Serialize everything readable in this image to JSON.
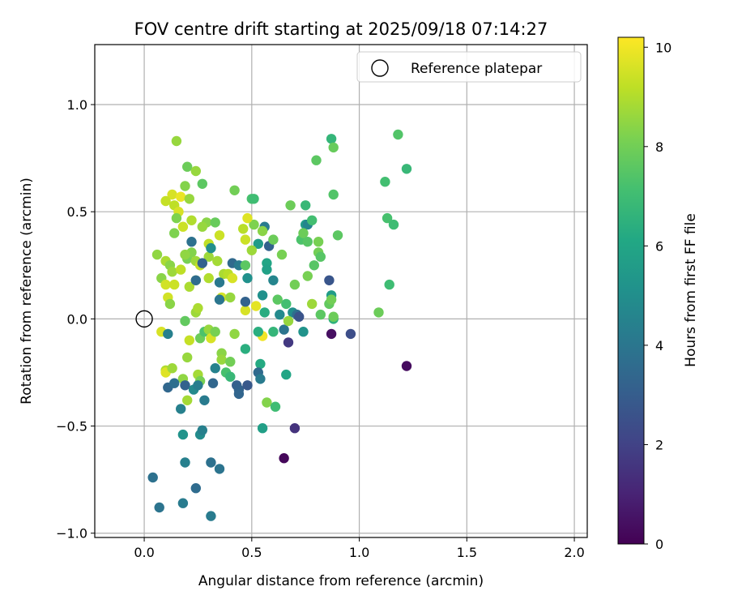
{
  "chart_data": {
    "type": "scatter",
    "title": "FOV centre drift starting at 2025/09/18 07:14:27",
    "xlabel": "Angular distance from reference (arcmin)",
    "ylabel": "Rotation from reference (arcmin)",
    "xlim": [
      -0.23,
      2.06
    ],
    "ylim": [
      -1.02,
      1.28
    ],
    "xticks": [
      0.0,
      0.5,
      1.0,
      1.5,
      2.0
    ],
    "xtick_labels": [
      "0.0",
      "0.5",
      "1.0",
      "1.5",
      "2.0"
    ],
    "yticks": [
      -1.0,
      -0.5,
      0.0,
      0.5,
      1.0
    ],
    "ytick_labels": [
      "−1.0",
      "−0.5",
      "0.0",
      "0.5",
      "1.0"
    ],
    "grid": true,
    "legend": {
      "placement": "top-right",
      "entries": [
        "Reference platepar"
      ]
    },
    "reference_point": {
      "x": 0.0,
      "y": 0.0
    },
    "colorbar": {
      "label": "Hours from first FF file",
      "colormap": "viridis",
      "range": [
        0,
        10.2
      ],
      "ticks": [
        0,
        2,
        4,
        6,
        8,
        10
      ],
      "tick_labels": [
        "0",
        "2",
        "4",
        "6",
        "8",
        "10"
      ]
    },
    "points": [
      [
        0.15,
        0.83,
        8.6
      ],
      [
        0.2,
        0.71,
        7.9
      ],
      [
        0.24,
        0.69,
        8.6
      ],
      [
        0.27,
        0.63,
        7.6
      ],
      [
        0.19,
        0.62,
        8.3
      ],
      [
        0.13,
        0.58,
        9.6
      ],
      [
        0.17,
        0.57,
        9.9
      ],
      [
        0.21,
        0.56,
        8.6
      ],
      [
        0.1,
        0.55,
        9.3
      ],
      [
        0.14,
        0.53,
        9.2
      ],
      [
        0.16,
        0.5,
        9.6
      ],
      [
        0.15,
        0.47,
        8.2
      ],
      [
        0.22,
        0.46,
        9.0
      ],
      [
        0.29,
        0.45,
        8.4
      ],
      [
        0.33,
        0.45,
        7.8
      ],
      [
        0.27,
        0.43,
        8.6
      ],
      [
        0.14,
        0.4,
        8.2
      ],
      [
        0.18,
        0.43,
        9.4
      ],
      [
        0.35,
        0.39,
        9.4
      ],
      [
        0.3,
        0.35,
        9.2
      ],
      [
        0.06,
        0.3,
        8.5
      ],
      [
        0.1,
        0.27,
        8.9
      ],
      [
        0.12,
        0.25,
        8.4
      ],
      [
        0.2,
        0.28,
        8.1
      ],
      [
        0.22,
        0.31,
        8.3
      ],
      [
        0.24,
        0.27,
        8.7
      ],
      [
        0.26,
        0.25,
        9.3
      ],
      [
        0.3,
        0.29,
        8.7
      ],
      [
        0.34,
        0.27,
        8.8
      ],
      [
        0.19,
        0.3,
        8.5
      ],
      [
        0.13,
        0.22,
        8.7
      ],
      [
        0.17,
        0.23,
        9.2
      ],
      [
        0.08,
        0.19,
        8.4
      ],
      [
        0.1,
        0.16,
        9.5
      ],
      [
        0.14,
        0.16,
        9.4
      ],
      [
        0.21,
        0.15,
        8.9
      ],
      [
        0.24,
        0.18,
        8.6
      ],
      [
        0.3,
        0.19,
        9.0
      ],
      [
        0.37,
        0.21,
        8.9
      ],
      [
        0.39,
        0.21,
        9.1
      ],
      [
        0.41,
        0.19,
        9.6
      ],
      [
        0.11,
        0.1,
        9.5
      ],
      [
        0.12,
        0.07,
        8.4
      ],
      [
        0.24,
        0.03,
        8.7
      ],
      [
        0.25,
        0.05,
        8.9
      ],
      [
        0.36,
        0.1,
        9.5
      ],
      [
        0.4,
        0.1,
        8.6
      ],
      [
        0.47,
        0.04,
        9.6
      ],
      [
        0.52,
        0.06,
        9.8
      ],
      [
        0.55,
        -0.08,
        10.0
      ],
      [
        0.08,
        -0.06,
        9.6
      ],
      [
        0.11,
        -0.07,
        4.4
      ],
      [
        0.19,
        -0.01,
        7.7
      ],
      [
        0.21,
        -0.1,
        9.3
      ],
      [
        0.26,
        -0.09,
        7.9
      ],
      [
        0.28,
        -0.06,
        7.3
      ],
      [
        0.3,
        -0.05,
        8.6
      ],
      [
        0.31,
        -0.09,
        9.6
      ],
      [
        0.33,
        -0.06,
        8.1
      ],
      [
        0.36,
        -0.16,
        8.4
      ],
      [
        0.36,
        -0.19,
        8.6
      ],
      [
        0.4,
        -0.2,
        8.0
      ],
      [
        0.42,
        -0.07,
        8.5
      ],
      [
        0.1,
        -0.24,
        9.0
      ],
      [
        0.1,
        -0.25,
        9.7
      ],
      [
        0.13,
        -0.23,
        8.7
      ],
      [
        0.2,
        -0.18,
        8.6
      ],
      [
        0.25,
        -0.26,
        8.8
      ],
      [
        0.26,
        -0.29,
        8.1
      ],
      [
        0.18,
        -0.28,
        8.5
      ],
      [
        0.2,
        -0.38,
        8.8
      ],
      [
        0.38,
        -0.25,
        7.2
      ],
      [
        0.4,
        -0.27,
        6.8
      ],
      [
        0.47,
        -0.14,
        6.4
      ],
      [
        0.53,
        -0.06,
        6.4
      ],
      [
        0.54,
        -0.21,
        6.2
      ],
      [
        0.57,
        -0.39,
        8.3
      ],
      [
        0.61,
        -0.41,
        7.0
      ],
      [
        0.55,
        -0.51,
        5.7
      ],
      [
        0.66,
        -0.26,
        6.0
      ],
      [
        0.11,
        -0.32,
        3.4
      ],
      [
        0.14,
        -0.3,
        3.7
      ],
      [
        0.17,
        -0.42,
        4.4
      ],
      [
        0.19,
        -0.31,
        3.2
      ],
      [
        0.23,
        -0.33,
        4.8
      ],
      [
        0.25,
        -0.31,
        4.3
      ],
      [
        0.26,
        -0.54,
        4.9
      ],
      [
        0.27,
        -0.52,
        4.4
      ],
      [
        0.28,
        -0.38,
        4.2
      ],
      [
        0.32,
        -0.3,
        3.4
      ],
      [
        0.33,
        -0.23,
        4.5
      ],
      [
        0.43,
        -0.31,
        3.1
      ],
      [
        0.44,
        -0.33,
        3.2
      ],
      [
        0.44,
        -0.35,
        3.3
      ],
      [
        0.48,
        -0.31,
        2.8
      ],
      [
        0.53,
        -0.25,
        3.5
      ],
      [
        0.54,
        -0.28,
        4.2
      ],
      [
        0.18,
        -0.54,
        5.2
      ],
      [
        0.19,
        -0.67,
        4.4
      ],
      [
        0.31,
        -0.67,
        3.8
      ],
      [
        0.35,
        -0.7,
        3.9
      ],
      [
        0.04,
        -0.74,
        3.8
      ],
      [
        0.24,
        -0.79,
        3.6
      ],
      [
        0.07,
        -0.88,
        3.9
      ],
      [
        0.18,
        -0.86,
        4.2
      ],
      [
        0.31,
        -0.92,
        4.2
      ],
      [
        0.7,
        -0.51,
        1.5
      ],
      [
        0.65,
        -0.65,
        0.2
      ],
      [
        0.87,
        -0.07,
        0.4
      ],
      [
        0.96,
        -0.07,
        2.4
      ],
      [
        1.22,
        -0.22,
        0.3
      ],
      [
        0.22,
        0.36,
        3.8
      ],
      [
        0.24,
        0.18,
        3.6
      ],
      [
        0.27,
        0.26,
        3.2
      ],
      [
        0.31,
        0.33,
        5.0
      ],
      [
        0.35,
        0.17,
        4.1
      ],
      [
        0.35,
        0.09,
        4.0
      ],
      [
        0.41,
        0.26,
        3.5
      ],
      [
        0.44,
        0.25,
        4.2
      ],
      [
        0.47,
        0.08,
        3.2
      ],
      [
        0.48,
        0.19,
        5.1
      ],
      [
        0.56,
        0.43,
        4.2
      ],
      [
        0.58,
        0.34,
        3.2
      ],
      [
        0.53,
        0.35,
        5.6
      ],
      [
        0.55,
        0.11,
        5.1
      ],
      [
        0.57,
        0.26,
        6.0
      ],
      [
        0.57,
        0.23,
        5.8
      ],
      [
        0.6,
        0.18,
        4.6
      ],
      [
        0.63,
        0.02,
        4.8
      ],
      [
        0.65,
        -0.05,
        3.9
      ],
      [
        0.67,
        -0.11,
        1.7
      ],
      [
        0.69,
        0.03,
        5.0
      ],
      [
        0.71,
        0.02,
        3.7
      ],
      [
        0.72,
        0.01,
        2.6
      ],
      [
        0.74,
        -0.06,
        5.2
      ],
      [
        0.75,
        0.44,
        5.6
      ],
      [
        0.76,
        0.44,
        4.6
      ],
      [
        0.86,
        0.18,
        2.7
      ],
      [
        0.87,
        0.11,
        5.6
      ],
      [
        0.88,
        0.0,
        6.5
      ],
      [
        0.5,
        0.56,
        7.2
      ],
      [
        0.51,
        0.56,
        7.0
      ],
      [
        0.42,
        0.6,
        8.0
      ],
      [
        0.51,
        0.44,
        8.2
      ],
      [
        0.55,
        0.41,
        8.4
      ],
      [
        0.6,
        0.37,
        7.9
      ],
      [
        0.64,
        0.3,
        8.1
      ],
      [
        0.68,
        0.53,
        7.9
      ],
      [
        0.75,
        0.53,
        6.8
      ],
      [
        0.73,
        0.37,
        7.3
      ],
      [
        0.74,
        0.4,
        7.9
      ],
      [
        0.76,
        0.36,
        7.5
      ],
      [
        0.78,
        0.46,
        7.1
      ],
      [
        0.79,
        0.25,
        7.5
      ],
      [
        0.81,
        0.31,
        8.0
      ],
      [
        0.81,
        0.36,
        8.1
      ],
      [
        0.82,
        0.29,
        7.5
      ],
      [
        0.8,
        0.74,
        7.6
      ],
      [
        0.87,
        0.84,
        6.7
      ],
      [
        0.88,
        0.8,
        7.8
      ],
      [
        0.88,
        0.58,
        7.4
      ],
      [
        0.9,
        0.39,
        7.6
      ],
      [
        0.76,
        0.2,
        8.1
      ],
      [
        0.78,
        0.07,
        8.7
      ],
      [
        0.82,
        0.02,
        7.6
      ],
      [
        0.86,
        0.07,
        7.7
      ],
      [
        0.87,
        0.09,
        8.0
      ],
      [
        0.88,
        0.01,
        7.9
      ],
      [
        0.7,
        0.16,
        8.0
      ],
      [
        0.67,
        -0.01,
        8.6
      ],
      [
        0.66,
        0.07,
        7.1
      ],
      [
        0.62,
        0.09,
        7.6
      ],
      [
        0.6,
        -0.06,
        6.7
      ],
      [
        0.5,
        0.32,
        8.7
      ],
      [
        0.47,
        0.25,
        7.6
      ],
      [
        0.56,
        0.03,
        6.3
      ],
      [
        1.09,
        0.03,
        7.9
      ],
      [
        1.12,
        0.64,
        7.1
      ],
      [
        1.14,
        0.16,
        7.0
      ],
      [
        1.13,
        0.47,
        7.2
      ],
      [
        1.16,
        0.44,
        7.0
      ],
      [
        1.18,
        0.86,
        7.4
      ],
      [
        1.22,
        0.7,
        6.8
      ],
      [
        0.47,
        0.37,
        9.4
      ],
      [
        0.48,
        0.47,
        9.7
      ],
      [
        0.46,
        0.42,
        9.1
      ]
    ]
  }
}
